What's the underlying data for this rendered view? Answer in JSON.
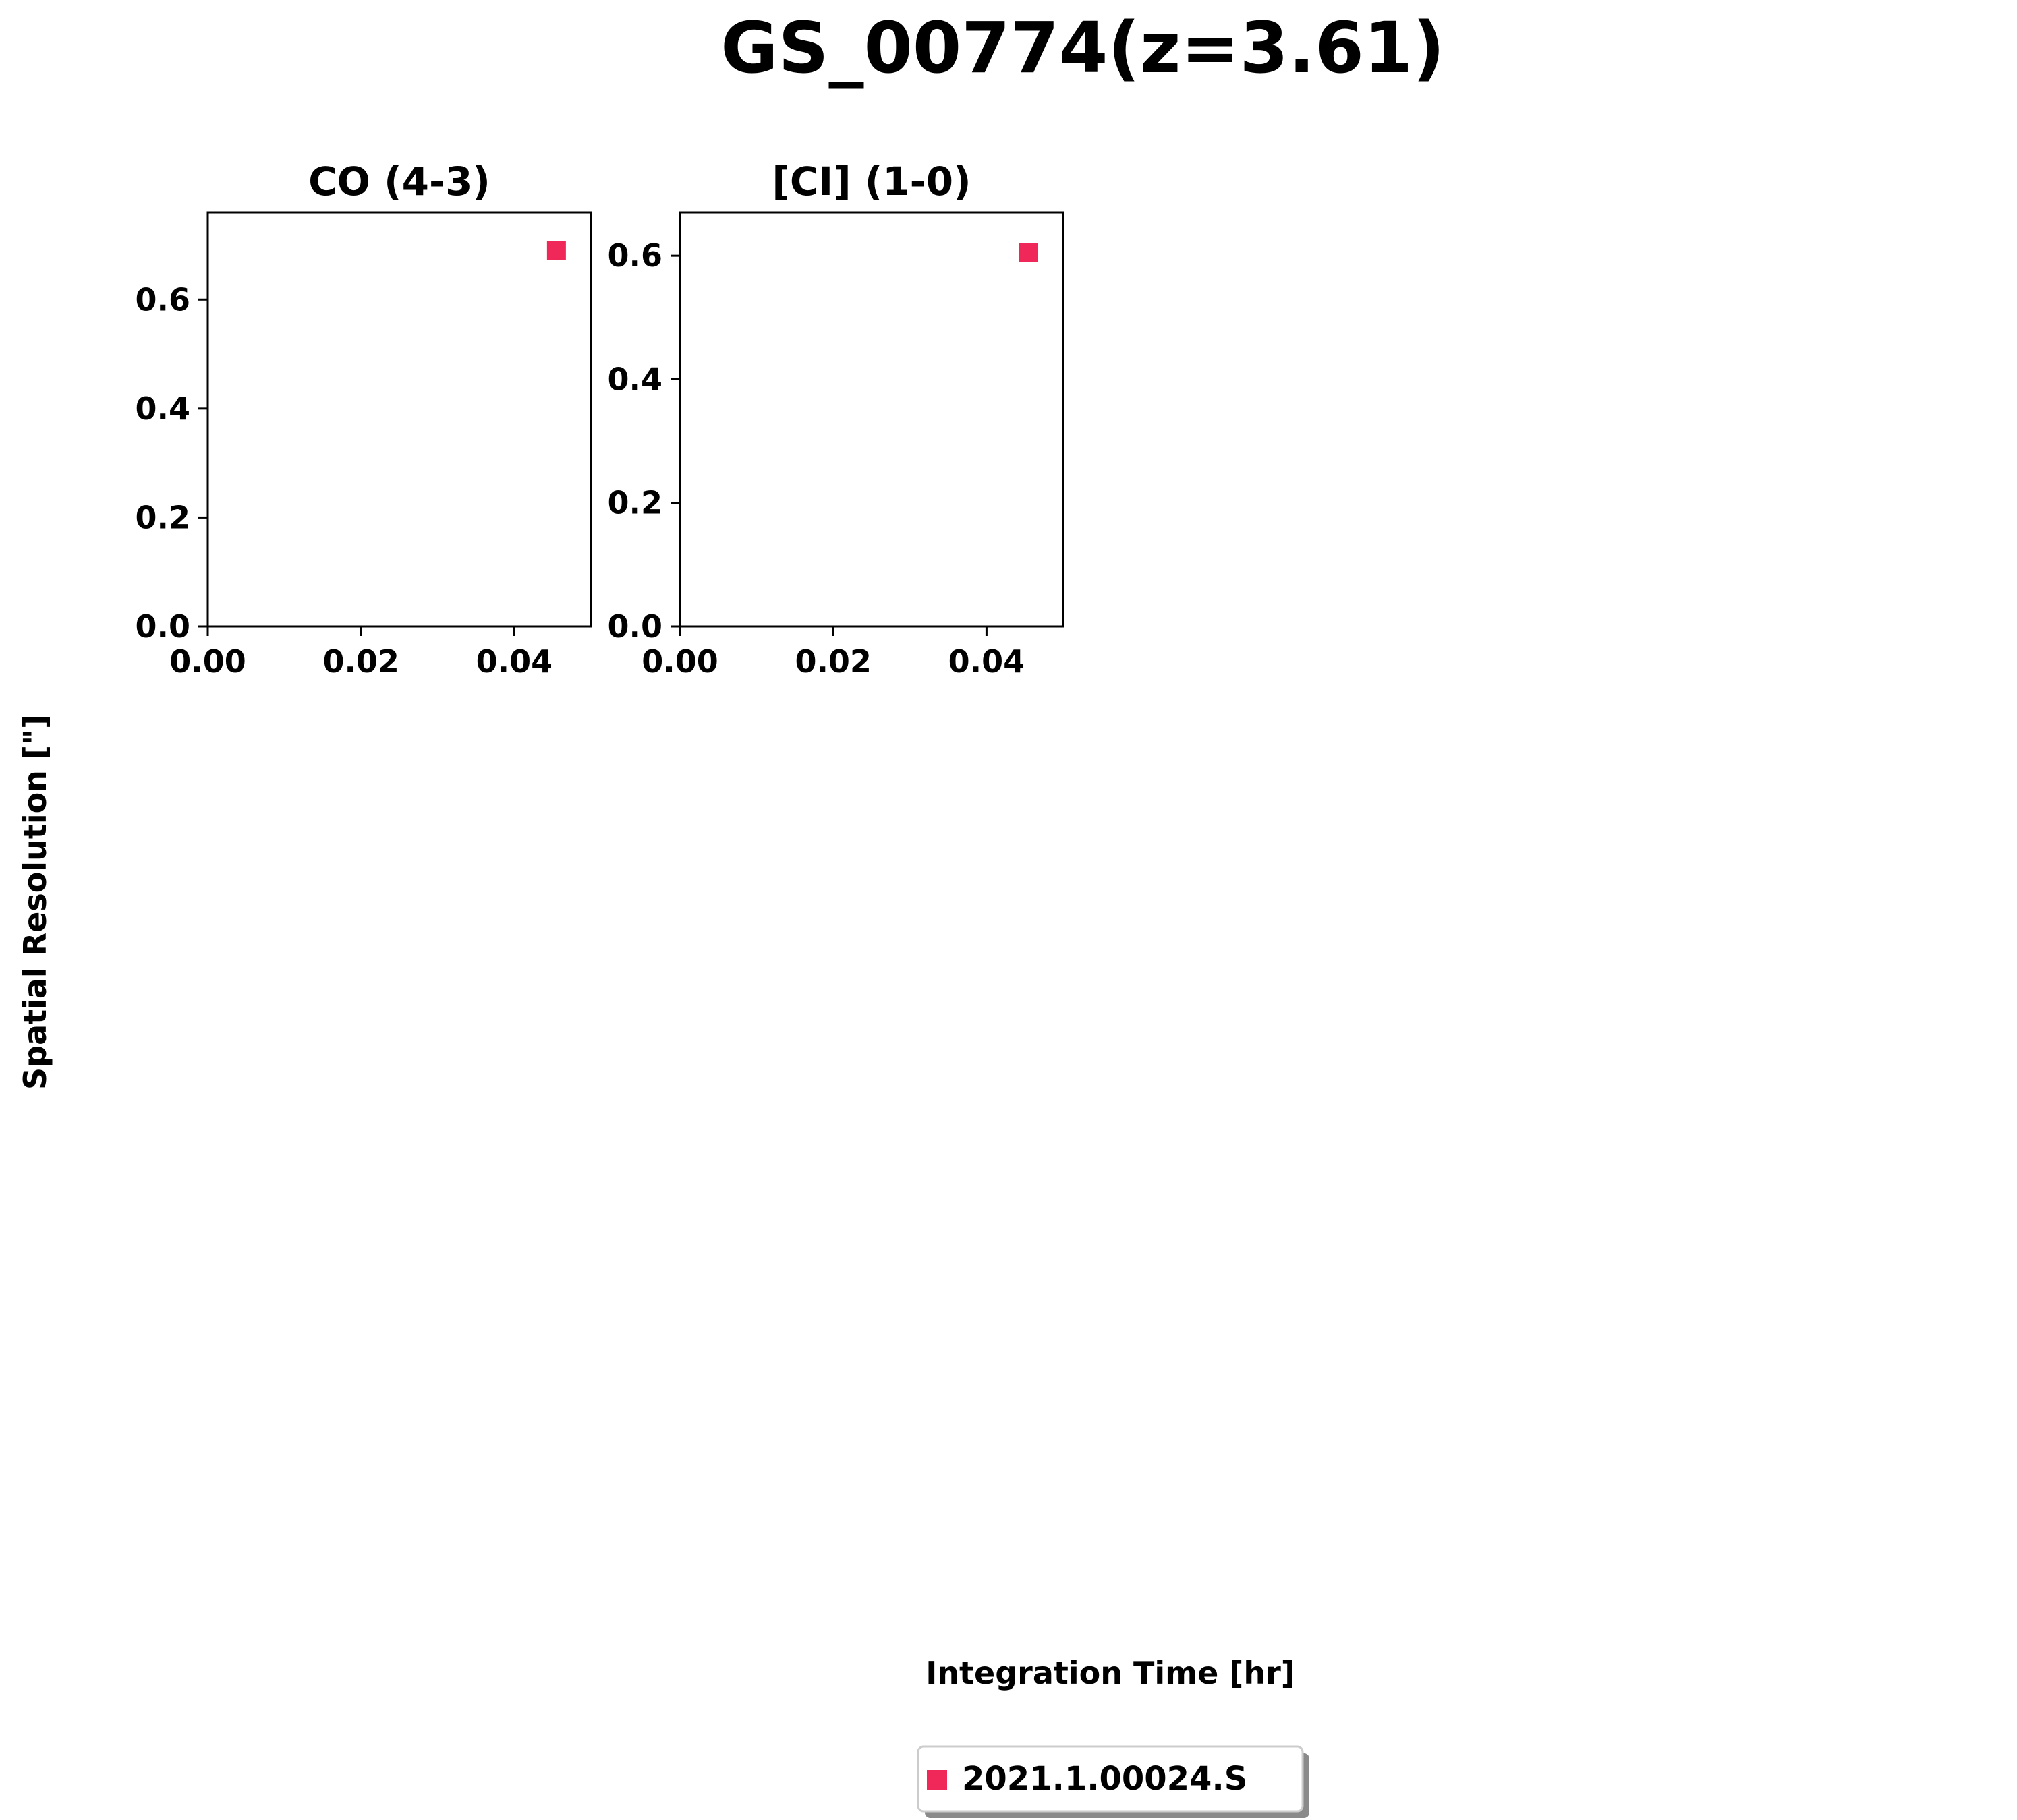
{
  "figure": {
    "title": "GS_00774(z=3.61)",
    "xlabel": "Integration Time [hr]",
    "ylabel": "Spatial Resolution [\"]"
  },
  "legend": {
    "placement": "bottom-center",
    "entries": [
      {
        "label": "2021.1.00024.S",
        "color": "#f0285a",
        "marker": "square"
      }
    ]
  },
  "chart_data": [
    {
      "type": "scatter",
      "title": "CO (4-3)",
      "xlim": [
        0,
        0.05
      ],
      "ylim": [
        0,
        0.76
      ],
      "xticks": [
        0,
        0.02,
        0.04
      ],
      "xtick_labels": [
        "0.00",
        "0.02",
        "0.04"
      ],
      "yticks": [
        0,
        0.2,
        0.4,
        0.6
      ],
      "ytick_labels": [
        "0.0",
        "0.2",
        "0.4",
        "0.6"
      ],
      "grid": false,
      "series": [
        {
          "name": "2021.1.00024.S",
          "color": "#f0285a",
          "marker": "square",
          "points": [
            {
              "x": 0.0455,
              "y": 0.69
            }
          ]
        }
      ]
    },
    {
      "type": "scatter",
      "title": "[CI] (1-0)",
      "xlim": [
        0,
        0.05
      ],
      "ylim": [
        0,
        0.67
      ],
      "xticks": [
        0,
        0.02,
        0.04
      ],
      "xtick_labels": [
        "0.00",
        "0.02",
        "0.04"
      ],
      "yticks": [
        0,
        0.2,
        0.4,
        0.6
      ],
      "ytick_labels": [
        "0.0",
        "0.2",
        "0.4",
        "0.6"
      ],
      "grid": false,
      "series": [
        {
          "name": "2021.1.00024.S",
          "color": "#f0285a",
          "marker": "square",
          "points": [
            {
              "x": 0.0455,
              "y": 0.605
            }
          ]
        }
      ]
    }
  ]
}
